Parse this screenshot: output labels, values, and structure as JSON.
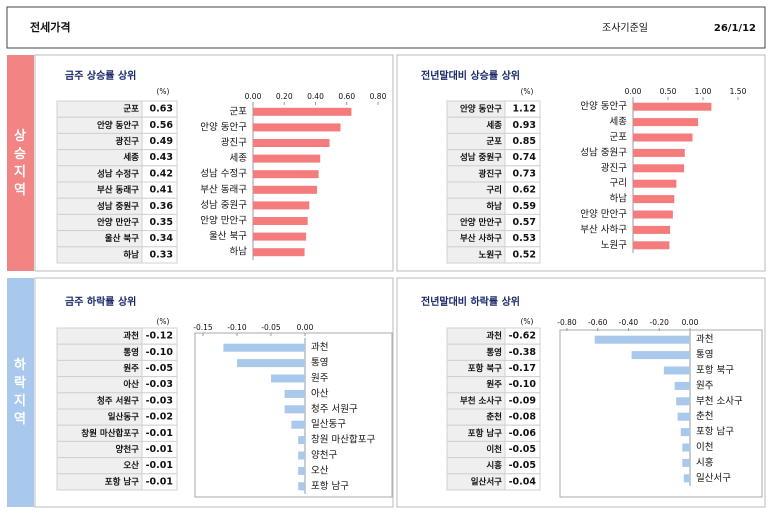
{
  "header": {
    "title": "전세가격",
    "date_label": "조사기준일",
    "date": "26/1/12"
  },
  "sections": [
    "상승지역",
    "하락지역"
  ],
  "chart_data": [
    {
      "type": "bar",
      "orientation": "horizontal",
      "title": "금주 상승률 상위",
      "unit": "(%)",
      "categories": [
        "군포",
        "안양 동안구",
        "광진구",
        "세종",
        "성남 수정구",
        "부산 동래구",
        "성남 중원구",
        "안양 만안구",
        "울산 북구",
        "하남"
      ],
      "values": [
        0.63,
        0.56,
        0.49,
        0.43,
        0.42,
        0.41,
        0.36,
        0.35,
        0.34,
        0.33
      ],
      "color": "#f47c7c",
      "xlim": [
        0,
        0.8
      ],
      "xticks": [
        {
          "value": 0,
          "label": "0.00"
        },
        {
          "value": 0.2,
          "label": "0.20"
        },
        {
          "value": 0.4,
          "label": "0.40"
        },
        {
          "value": 0.6,
          "label": "0.60"
        },
        {
          "value": 0.8,
          "label": "0.80"
        }
      ]
    },
    {
      "type": "bar",
      "orientation": "horizontal",
      "title": "전년말대비 상승률 상위",
      "unit": "(%)",
      "categories": [
        "안양 동안구",
        "세종",
        "군포",
        "성남 중원구",
        "광진구",
        "구리",
        "하남",
        "안양 만안구",
        "부산 사하구",
        "노원구"
      ],
      "values": [
        1.12,
        0.93,
        0.85,
        0.74,
        0.73,
        0.62,
        0.59,
        0.57,
        0.53,
        0.52
      ],
      "color": "#f47c7c",
      "xlim": [
        0,
        1.5
      ],
      "xticks": [
        {
          "value": 0,
          "label": "0.00"
        },
        {
          "value": 0.5,
          "label": "0.50"
        },
        {
          "value": 1,
          "label": "1.00"
        },
        {
          "value": 1.5,
          "label": "1.50"
        }
      ]
    },
    {
      "type": "bar",
      "orientation": "horizontal",
      "title": "금주 하락률 상위",
      "unit": "(%)",
      "categories": [
        "과천",
        "통영",
        "원주",
        "아산",
        "청주 서원구",
        "일산동구",
        "창원 마산합포구",
        "양천구",
        "오산",
        "포항 남구"
      ],
      "values": [
        -0.12,
        -0.1,
        -0.05,
        -0.03,
        -0.03,
        -0.02,
        -0.01,
        -0.01,
        -0.01,
        -0.01
      ],
      "value_labels": [
        "-0.12",
        "-0.10",
        "-0.05",
        "-0.03",
        "-0.03",
        "-0.02",
        "-0.01",
        "-0.01",
        "-0.01",
        "-0.01"
      ],
      "color": "#a8c8ec",
      "xlim": [
        -0.15,
        0
      ],
      "xticks": [
        {
          "value": -0.15,
          "label": "-0.15"
        },
        {
          "value": -0.1,
          "label": "-0.10"
        },
        {
          "value": -0.05,
          "label": "-0.05"
        },
        {
          "value": 0,
          "label": "0.00"
        }
      ]
    },
    {
      "type": "bar",
      "orientation": "horizontal",
      "title": "전년말대비 하락률 상위",
      "unit": "(%)",
      "categories": [
        "과천",
        "통영",
        "포항 북구",
        "원주",
        "부천 소사구",
        "춘천",
        "포항 남구",
        "이천",
        "시흥",
        "일산서구"
      ],
      "values": [
        -0.62,
        -0.38,
        -0.17,
        -0.1,
        -0.09,
        -0.08,
        -0.06,
        -0.05,
        -0.05,
        -0.04
      ],
      "value_labels": [
        "-0.62",
        "-0.38",
        "-0.17",
        "-0.10",
        "-0.09",
        "-0.08",
        "-0.06",
        "-0.05",
        "-0.05",
        "-0.04"
      ],
      "color": "#a8c8ec",
      "xlim": [
        -0.8,
        0
      ],
      "xticks": [
        {
          "value": -0.8,
          "label": "-0.80"
        },
        {
          "value": -0.6,
          "label": "-0.60"
        },
        {
          "value": -0.4,
          "label": "-0.40"
        },
        {
          "value": -0.2,
          "label": "-0.20"
        },
        {
          "value": 0,
          "label": "0.00"
        }
      ]
    }
  ]
}
